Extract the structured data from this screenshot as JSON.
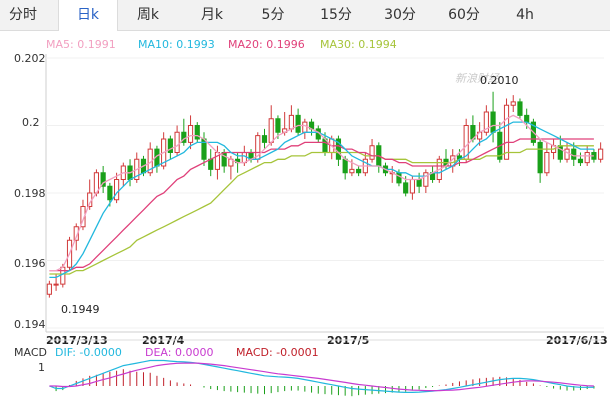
{
  "tabs": [
    {
      "label": "分时",
      "active": false
    },
    {
      "label": "日k",
      "active": true
    },
    {
      "label": "周k",
      "active": false
    },
    {
      "label": "月k",
      "active": false
    },
    {
      "label": "5分",
      "active": false
    },
    {
      "label": "15分",
      "active": false
    },
    {
      "label": "30分",
      "active": false
    },
    {
      "label": "60分",
      "active": false
    },
    {
      "label": "4h",
      "active": false
    }
  ],
  "legend": {
    "ma5": "MA5: 0.1991",
    "ma10": "MA10: 0.1993",
    "ma20": "MA20: 0.1996",
    "ma30": "MA30: 0.1994"
  },
  "colors": {
    "up": "#d13a3a",
    "down": "#1aa01a",
    "ma5": "#f29fc0",
    "ma10": "#22b8de",
    "ma20": "#e0407a",
    "ma30": "#a6c43a",
    "dif": "#22b8de",
    "dea": "#c83bd0",
    "macd": "#c0202a",
    "tab_active": "#2a63c6"
  },
  "watermark": "新浪财经",
  "annotations": {
    "high": "0.2010",
    "low": "0.1949"
  },
  "macd": {
    "title": "MACD",
    "dif": "DIF: -0.0000",
    "dea": "DEA: 0.0000",
    "macd": "MACD: -0.0001",
    "ytick": "1"
  },
  "chart_data": {
    "type": "candlestick",
    "ylim": [
      0.194,
      0.202
    ],
    "yticks": [
      "0.202",
      "0.2",
      "0.198",
      "0.196",
      "0.194"
    ],
    "xticks": [
      "2017/3/13",
      "2017/4",
      "2017/5",
      "2017/6/13"
    ],
    "candles": [
      [
        0.195,
        0.1953,
        0.1954,
        0.1949
      ],
      [
        0.1953,
        0.1953,
        0.1956,
        0.1951
      ],
      [
        0.1953,
        0.1958,
        0.1959,
        0.1952
      ],
      [
        0.1958,
        0.1966,
        0.1967,
        0.1957
      ],
      [
        0.1966,
        0.197,
        0.1971,
        0.1963
      ],
      [
        0.197,
        0.1976,
        0.1978,
        0.1969
      ],
      [
        0.1976,
        0.198,
        0.1984,
        0.1975
      ],
      [
        0.198,
        0.1986,
        0.1987,
        0.1979
      ],
      [
        0.1986,
        0.1982,
        0.1988,
        0.198
      ],
      [
        0.1982,
        0.1978,
        0.1983,
        0.1976
      ],
      [
        0.1978,
        0.1984,
        0.1986,
        0.1977
      ],
      [
        0.1984,
        0.1988,
        0.1989,
        0.1982
      ],
      [
        0.1988,
        0.1984,
        0.199,
        0.1982
      ],
      [
        0.1984,
        0.199,
        0.1992,
        0.1983
      ],
      [
        0.199,
        0.1986,
        0.1991,
        0.1985
      ],
      [
        0.1986,
        0.1993,
        0.1995,
        0.1985
      ],
      [
        0.1993,
        0.1988,
        0.1994,
        0.1986
      ],
      [
        0.1988,
        0.1996,
        0.1998,
        0.1987
      ],
      [
        0.1996,
        0.1992,
        0.1997,
        0.199
      ],
      [
        0.1992,
        0.1998,
        0.2,
        0.1991
      ],
      [
        0.1998,
        0.1995,
        0.2002,
        0.1994
      ],
      [
        0.1995,
        0.2,
        0.2003,
        0.1993
      ],
      [
        0.2,
        0.1996,
        0.2001,
        0.1995
      ],
      [
        0.1996,
        0.199,
        0.1998,
        0.1988
      ],
      [
        0.199,
        0.1987,
        0.1993,
        0.1985
      ],
      [
        0.1987,
        0.1992,
        0.1994,
        0.1984
      ],
      [
        0.1992,
        0.1988,
        0.1993,
        0.1986
      ],
      [
        0.1988,
        0.199,
        0.1991,
        0.1984
      ],
      [
        0.199,
        0.1989,
        0.1992,
        0.1986
      ],
      [
        0.1989,
        0.1992,
        0.1994,
        0.1988
      ],
      [
        0.1992,
        0.199,
        0.1993,
        0.1989
      ],
      [
        0.199,
        0.1997,
        0.1998,
        0.1989
      ],
      [
        0.1997,
        0.1995,
        0.1999,
        0.1993
      ],
      [
        0.1995,
        0.2002,
        0.2006,
        0.1994
      ],
      [
        0.2002,
        0.1998,
        0.2003,
        0.1996
      ],
      [
        0.1998,
        0.1999,
        0.2004,
        0.1997
      ],
      [
        0.1999,
        0.2003,
        0.2006,
        0.1998
      ],
      [
        0.2003,
        0.1998,
        0.2005,
        0.1997
      ],
      [
        0.1998,
        0.2001,
        0.2002,
        0.1996
      ],
      [
        0.2001,
        0.1999,
        0.2002,
        0.1997
      ],
      [
        0.1999,
        0.1996,
        0.2,
        0.1995
      ],
      [
        0.1996,
        0.1992,
        0.1998,
        0.1991
      ],
      [
        0.1992,
        0.1996,
        0.1997,
        0.199
      ],
      [
        0.1996,
        0.199,
        0.1997,
        0.1988
      ],
      [
        0.199,
        0.1986,
        0.1991,
        0.1984
      ],
      [
        0.1986,
        0.1987,
        0.199,
        0.1985
      ],
      [
        0.1987,
        0.1986,
        0.1988,
        0.1985
      ],
      [
        0.1986,
        0.199,
        0.1992,
        0.1985
      ],
      [
        0.199,
        0.1994,
        0.1996,
        0.1989
      ],
      [
        0.1994,
        0.1988,
        0.1995,
        0.1986
      ],
      [
        0.1988,
        0.1986,
        0.1989,
        0.1985
      ],
      [
        0.1986,
        0.1986,
        0.1988,
        0.1983
      ],
      [
        0.1986,
        0.1983,
        0.1987,
        0.1982
      ],
      [
        0.1983,
        0.198,
        0.1985,
        0.1979
      ],
      [
        0.198,
        0.1984,
        0.1985,
        0.1978
      ],
      [
        0.1984,
        0.1982,
        0.1986,
        0.198
      ],
      [
        0.1982,
        0.1986,
        0.1987,
        0.198
      ],
      [
        0.1986,
        0.1984,
        0.1988,
        0.1983
      ],
      [
        0.1984,
        0.199,
        0.1991,
        0.1983
      ],
      [
        0.199,
        0.1988,
        0.1993,
        0.1987
      ],
      [
        0.1988,
        0.1991,
        0.1993,
        0.1986
      ],
      [
        0.1991,
        0.199,
        0.1993,
        0.1988
      ],
      [
        0.199,
        0.2,
        0.2002,
        0.1989
      ],
      [
        0.2,
        0.1996,
        0.2003,
        0.1995
      ],
      [
        0.1996,
        0.1998,
        0.2001,
        0.1994
      ],
      [
        0.1998,
        0.2004,
        0.2006,
        0.1997
      ],
      [
        0.2004,
        0.1998,
        0.201,
        0.1995
      ],
      [
        0.1998,
        0.199,
        0.2001,
        0.1989
      ],
      [
        0.199,
        0.2006,
        0.2008,
        0.199
      ],
      [
        0.2006,
        0.2007,
        0.2009,
        0.2004
      ],
      [
        0.2007,
        0.2003,
        0.2008,
        0.2002
      ],
      [
        0.2003,
        0.2001,
        0.2005,
        0.1999
      ],
      [
        0.2001,
        0.1995,
        0.2002,
        0.1994
      ],
      [
        0.1995,
        0.1986,
        0.1996,
        0.1983
      ],
      [
        0.1986,
        0.1992,
        0.1995,
        0.1985
      ],
      [
        0.1992,
        0.1994,
        0.1996,
        0.199
      ],
      [
        0.1994,
        0.199,
        0.1997,
        0.1989
      ],
      [
        0.199,
        0.1993,
        0.1995,
        0.1989
      ],
      [
        0.1993,
        0.199,
        0.1995,
        0.1988
      ],
      [
        0.199,
        0.1989,
        0.1992,
        0.1988
      ],
      [
        0.1989,
        0.1992,
        0.1994,
        0.1988
      ],
      [
        0.1992,
        0.199,
        0.1993,
        0.1989
      ],
      [
        0.199,
        0.1993,
        0.1995,
        0.1989
      ]
    ],
    "ma5": [
      0.1957,
      0.1957,
      0.1958,
      0.1962,
      0.1967,
      0.1972,
      0.1977,
      0.198,
      0.1983,
      0.1984,
      0.1985,
      0.1986,
      0.1986,
      0.1987,
      0.1988,
      0.1989,
      0.1991,
      0.1992,
      0.1993,
      0.1994,
      0.1996,
      0.1997,
      0.1997,
      0.1996,
      0.1994,
      0.1992,
      0.1991,
      0.199,
      0.1989,
      0.1989,
      0.199,
      0.1991,
      0.1993,
      0.1995,
      0.1997,
      0.1998,
      0.1999,
      0.2,
      0.2,
      0.1999,
      0.1998,
      0.1996,
      0.1994,
      0.1992,
      0.199,
      0.1989,
      0.1988,
      0.1988,
      0.1988,
      0.1988,
      0.1987,
      0.1986,
      0.1985,
      0.1984,
      0.1984,
      0.1984,
      0.1985,
      0.1986,
      0.1987,
      0.1988,
      0.199,
      0.1992,
      0.1994,
      0.1996,
      0.1998,
      0.1999,
      0.2,
      0.2,
      0.2002,
      0.2003,
      0.2002,
      0.2,
      0.1998,
      0.1996,
      0.1995,
      0.1994,
      0.1993,
      0.1992,
      0.1991,
      0.1991,
      0.1991,
      0.1991
    ],
    "ma10": [
      0.1955,
      0.1955,
      0.1956,
      0.1957,
      0.1959,
      0.1962,
      0.1966,
      0.197,
      0.1974,
      0.1977,
      0.198,
      0.1982,
      0.1984,
      0.1985,
      0.1986,
      0.1987,
      0.1988,
      0.1989,
      0.199,
      0.1991,
      0.1992,
      0.1994,
      0.1995,
      0.1995,
      0.1995,
      0.1995,
      0.1994,
      0.1992,
      0.1991,
      0.1991,
      0.199,
      0.199,
      0.1991,
      0.1992,
      0.1993,
      0.1995,
      0.1996,
      0.1997,
      0.1998,
      0.1998,
      0.1998,
      0.1997,
      0.1996,
      0.1995,
      0.1993,
      0.1991,
      0.199,
      0.1989,
      0.1988,
      0.1988,
      0.1987,
      0.1987,
      0.1986,
      0.1986,
      0.1985,
      0.1985,
      0.1985,
      0.1986,
      0.1986,
      0.1987,
      0.1988,
      0.199,
      0.1991,
      0.1993,
      0.1995,
      0.1996,
      0.1998,
      0.1999,
      0.2,
      0.2001,
      0.2001,
      0.2001,
      0.2,
      0.1999,
      0.1998,
      0.1997,
      0.1996,
      0.1995,
      0.1994,
      0.1993,
      0.1993,
      0.1993
    ],
    "ma20": [
      0.1957,
      0.1957,
      0.1957,
      0.1957,
      0.1958,
      0.1958,
      0.1959,
      0.1961,
      0.1963,
      0.1965,
      0.1967,
      0.1969,
      0.1971,
      0.1973,
      0.1975,
      0.1977,
      0.1979,
      0.198,
      0.1982,
      0.1984,
      0.1985,
      0.1987,
      0.1988,
      0.1989,
      0.199,
      0.1991,
      0.1992,
      0.1992,
      0.1992,
      0.1992,
      0.1992,
      0.1992,
      0.1992,
      0.1993,
      0.1993,
      0.1993,
      0.1994,
      0.1994,
      0.1995,
      0.1995,
      0.1995,
      0.1995,
      0.1994,
      0.1994,
      0.1993,
      0.1993,
      0.1992,
      0.1992,
      0.1991,
      0.1991,
      0.199,
      0.199,
      0.1989,
      0.1989,
      0.1988,
      0.1988,
      0.1988,
      0.1988,
      0.1988,
      0.1988,
      0.1988,
      0.1989,
      0.1989,
      0.199,
      0.1991,
      0.1992,
      0.1993,
      0.1994,
      0.1995,
      0.1995,
      0.1996,
      0.1996,
      0.1996,
      0.1996,
      0.1996,
      0.1996,
      0.1996,
      0.1996,
      0.1996,
      0.1996,
      0.1996,
      0.1996
    ],
    "ma30": [
      0.1956,
      0.1956,
      0.1956,
      0.1956,
      0.1957,
      0.1957,
      0.1958,
      0.1959,
      0.196,
      0.1961,
      0.1962,
      0.1963,
      0.1964,
      0.1966,
      0.1967,
      0.1968,
      0.1969,
      0.197,
      0.1971,
      0.1972,
      0.1973,
      0.1974,
      0.1975,
      0.1976,
      0.1977,
      0.1979,
      0.1981,
      0.1983,
      0.1985,
      0.1986,
      0.1987,
      0.1988,
      0.1989,
      0.1989,
      0.199,
      0.199,
      0.1991,
      0.1991,
      0.1991,
      0.1992,
      0.1992,
      0.1992,
      0.1992,
      0.1992,
      0.1992,
      0.1992,
      0.1992,
      0.1991,
      0.1991,
      0.1991,
      0.199,
      0.199,
      0.199,
      0.199,
      0.1989,
      0.1989,
      0.1989,
      0.1989,
      0.1989,
      0.1989,
      0.1989,
      0.199,
      0.199,
      0.199,
      0.199,
      0.1991,
      0.1991,
      0.1991,
      0.1992,
      0.1992,
      0.1992,
      0.1993,
      0.1993,
      0.1993,
      0.1993,
      0.1993,
      0.1994,
      0.1994,
      0.1994,
      0.1994,
      0.1994,
      0.1994
    ],
    "macd_dif": [
      0.0,
      -0.1,
      -0.1,
      0.0,
      0.1,
      0.2,
      0.3,
      0.4,
      0.5,
      0.6,
      0.7,
      0.8,
      0.85,
      0.9,
      0.95,
      1.0,
      1.0,
      1.0,
      0.98,
      0.96,
      0.95,
      0.93,
      0.9,
      0.85,
      0.8,
      0.75,
      0.7,
      0.65,
      0.6,
      0.55,
      0.5,
      0.45,
      0.4,
      0.38,
      0.36,
      0.35,
      0.33,
      0.3,
      0.25,
      0.2,
      0.15,
      0.1,
      0.05,
      0.0,
      -0.05,
      -0.1,
      -0.12,
      -0.14,
      -0.16,
      -0.18,
      -0.2,
      -0.22,
      -0.24,
      -0.25,
      -0.25,
      -0.24,
      -0.22,
      -0.2,
      -0.17,
      -0.14,
      -0.1,
      -0.05,
      0.0,
      0.05,
      0.1,
      0.15,
      0.2,
      0.25,
      0.28,
      0.3,
      0.3,
      0.28,
      0.25,
      0.2,
      0.15,
      0.1,
      0.05,
      0.0,
      -0.03,
      -0.05,
      -0.05,
      -0.05
    ],
    "macd_dea": [
      0.0,
      0.0,
      -0.02,
      -0.02,
      0.0,
      0.05,
      0.1,
      0.18,
      0.25,
      0.32,
      0.4,
      0.47,
      0.55,
      0.62,
      0.68,
      0.74,
      0.8,
      0.84,
      0.87,
      0.89,
      0.9,
      0.9,
      0.9,
      0.88,
      0.86,
      0.83,
      0.8,
      0.76,
      0.72,
      0.68,
      0.64,
      0.6,
      0.56,
      0.52,
      0.48,
      0.45,
      0.42,
      0.39,
      0.36,
      0.33,
      0.3,
      0.26,
      0.22,
      0.18,
      0.14,
      0.1,
      0.06,
      0.03,
      0.0,
      -0.03,
      -0.06,
      -0.09,
      -0.12,
      -0.14,
      -0.16,
      -0.17,
      -0.18,
      -0.18,
      -0.18,
      -0.17,
      -0.16,
      -0.14,
      -0.11,
      -0.08,
      -0.05,
      -0.01,
      0.03,
      0.07,
      0.11,
      0.15,
      0.18,
      0.2,
      0.2,
      0.19,
      0.17,
      0.15,
      0.12,
      0.09,
      0.06,
      0.03,
      0.01,
      0.0
    ]
  }
}
